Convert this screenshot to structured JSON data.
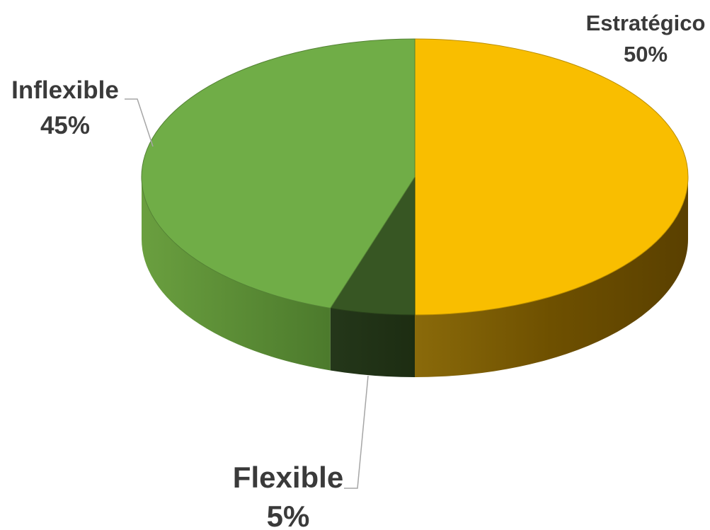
{
  "chart_data": {
    "type": "pie",
    "style": "3d",
    "title": "",
    "categories": [
      "Estratégico",
      "Flexible",
      "Inflexible"
    ],
    "values": [
      50,
      5,
      45
    ],
    "labels": [
      "50%",
      "5%",
      "45%"
    ],
    "colors": [
      "#F9BE00",
      "#375623",
      "#70AD47"
    ],
    "legend": "none",
    "label_placement": "outside-with-leader-lines"
  }
}
